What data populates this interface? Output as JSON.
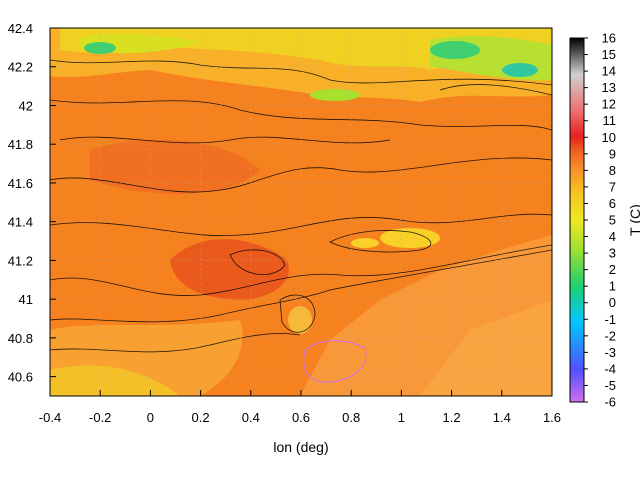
{
  "chart_data": {
    "type": "heatmap",
    "title": "",
    "xlabel": "lon (deg)",
    "ylabel": "",
    "colorbar_label": "T (C)",
    "xlim": [
      -0.4,
      1.6
    ],
    "ylim": [
      40.5,
      42.4
    ],
    "x_ticks": [
      "-0.4",
      "-0.2",
      "0",
      "0.2",
      "0.4",
      "0.6",
      "0.8",
      "1",
      "1.2",
      "1.4",
      "1.6"
    ],
    "y_ticks": [
      "40.6",
      "40.8",
      "41",
      "41.2",
      "41.4",
      "41.6",
      "41.8",
      "42",
      "42.2",
      "42.4"
    ],
    "colorbar_range": [
      -6,
      16
    ],
    "colorbar_ticks": [
      "16",
      "15",
      "14",
      "13",
      "12",
      "11",
      "10",
      "9",
      "8",
      "7",
      "6",
      "5",
      "4",
      "3",
      "2",
      "1",
      "0",
      "-1",
      "-2",
      "-3",
      "-4",
      "-5",
      "-6"
    ],
    "grid": true,
    "contour_lines": true,
    "typical_value": 8.5,
    "colormap": [
      "#d070f0",
      "#5050ff",
      "#00c8ff",
      "#20d070",
      "#a0e030",
      "#f0e820",
      "#f8c020",
      "#f89028",
      "#f06020",
      "#e82020",
      "#f07070",
      "#d0d0d0",
      "#000000"
    ]
  }
}
